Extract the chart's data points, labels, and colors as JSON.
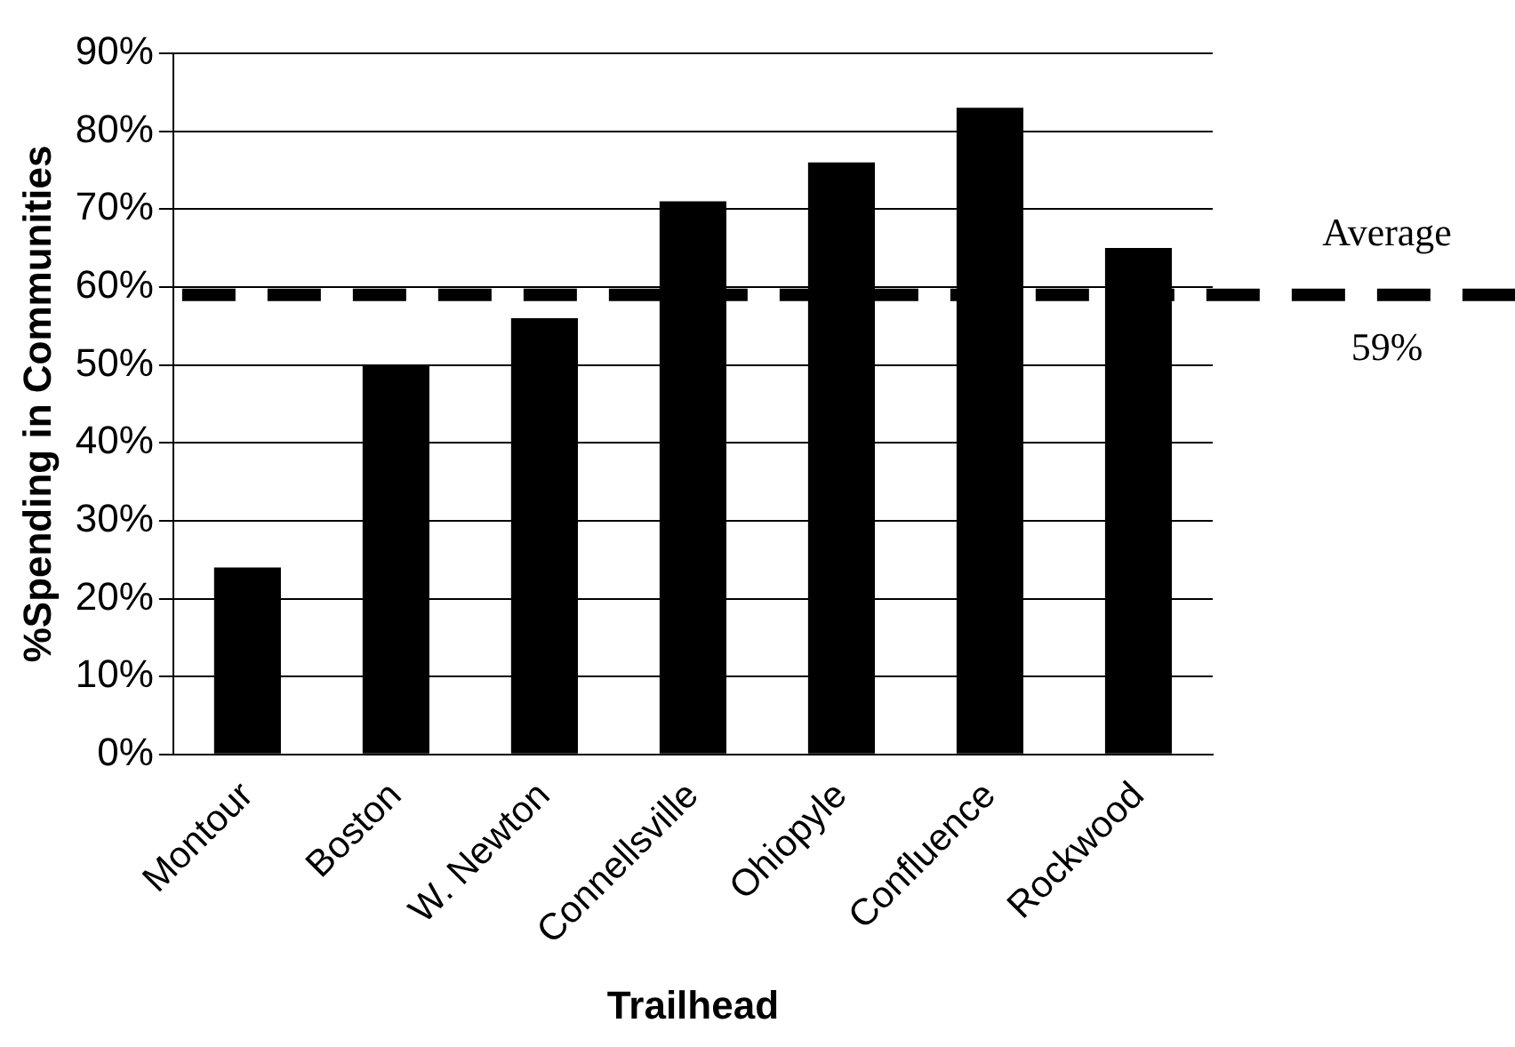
{
  "chart_data": {
    "type": "bar",
    "xlabel": "Trailhead",
    "ylabel": "%Spending in Communities",
    "categories": [
      "Montour",
      "Boston",
      "W. Newton",
      "Connellsville",
      "Ohiopyle",
      "Confluence",
      "Rockwood"
    ],
    "values": [
      24,
      50,
      56,
      71,
      76,
      83,
      65
    ],
    "color": "#000000",
    "ylim": [
      0,
      90
    ],
    "yticks": [
      {
        "value": 0,
        "label": "0%"
      },
      {
        "value": 10,
        "label": "10%"
      },
      {
        "value": 20,
        "label": "20%"
      },
      {
        "value": 30,
        "label": "30%"
      },
      {
        "value": 40,
        "label": "40%"
      },
      {
        "value": 50,
        "label": "50%"
      },
      {
        "value": 60,
        "label": "60%"
      },
      {
        "value": 70,
        "label": "70%"
      },
      {
        "value": 80,
        "label": "80%"
      },
      {
        "value": 90,
        "label": "90%"
      }
    ],
    "grid": "y",
    "legend": false,
    "ref_lines": [
      {
        "axis": "y",
        "value": 59,
        "label": "Average",
        "color": "#000000",
        "line_style": "dashed"
      }
    ],
    "annotations": [
      {
        "text": "59%",
        "y": 59
      }
    ]
  }
}
